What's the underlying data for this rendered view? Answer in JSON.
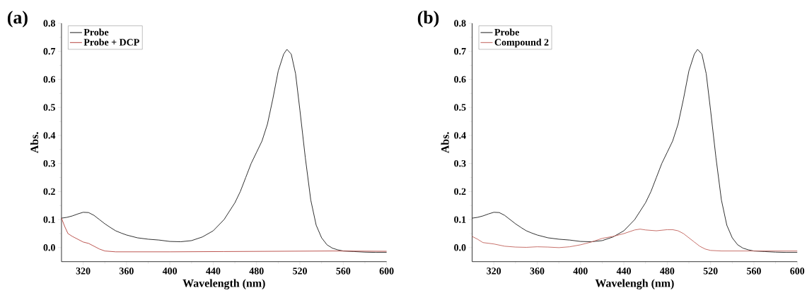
{
  "chart_data": [
    {
      "type": "line",
      "title": "(a)",
      "xlabel": "Wavelength (nm)",
      "ylabel": "Abs.",
      "xlim": [
        300,
        600
      ],
      "ylim": [
        -0.05,
        0.8
      ],
      "xticks": [
        320,
        360,
        400,
        440,
        480,
        520,
        560,
        600
      ],
      "yticks": [
        {
          "value": 0,
          "label": "0.0"
        },
        0.1,
        0.2,
        0.3,
        0.4,
        0.5,
        0.6,
        0.7,
        0.8
      ],
      "legend": "top left",
      "series": [
        {
          "name": "Probe",
          "color": "#1a1a1a",
          "x": [
            300,
            305,
            310,
            315,
            320,
            325,
            330,
            335,
            340,
            345,
            350,
            355,
            360,
            370,
            380,
            390,
            400,
            410,
            420,
            430,
            440,
            450,
            460,
            465,
            470,
            475,
            480,
            485,
            490,
            495,
            500,
            505,
            508,
            512,
            516,
            520,
            525,
            530,
            535,
            540,
            545,
            550,
            555,
            560,
            570,
            580,
            590,
            600
          ],
          "values": [
            0.105,
            0.108,
            0.113,
            0.12,
            0.126,
            0.125,
            0.115,
            0.1,
            0.085,
            0.072,
            0.06,
            0.052,
            0.045,
            0.035,
            0.03,
            0.027,
            0.022,
            0.021,
            0.025,
            0.038,
            0.06,
            0.1,
            0.16,
            0.2,
            0.25,
            0.3,
            0.34,
            0.38,
            0.44,
            0.53,
            0.63,
            0.69,
            0.707,
            0.69,
            0.62,
            0.49,
            0.32,
            0.17,
            0.08,
            0.035,
            0.01,
            -0.002,
            -0.008,
            -0.012,
            -0.014,
            -0.016,
            -0.017,
            -0.017
          ]
        },
        {
          "name": "Probe + DCP",
          "color": "#b5433d",
          "x": [
            300,
            303,
            306,
            310,
            315,
            320,
            325,
            330,
            335,
            340,
            350,
            400,
            450,
            550,
            600
          ],
          "values": [
            0.105,
            0.075,
            0.05,
            0.04,
            0.03,
            0.02,
            0.015,
            0.005,
            -0.005,
            -0.012,
            -0.015,
            -0.015,
            -0.014,
            -0.012,
            -0.013
          ]
        }
      ]
    },
    {
      "type": "line",
      "title": "(b)",
      "xlabel": "Wavelengh (nm)",
      "ylabel": "Abs.",
      "xlim": [
        300,
        600
      ],
      "ylim": [
        -0.05,
        0.8
      ],
      "xticks": [
        320,
        360,
        400,
        440,
        480,
        520,
        560,
        600
      ],
      "yticks": [
        {
          "value": 0,
          "label": "0.0"
        },
        0.1,
        0.2,
        0.3,
        0.4,
        0.5,
        0.6,
        0.7,
        0.8
      ],
      "legend": "top left",
      "series": [
        {
          "name": "Probe",
          "color": "#1a1a1a",
          "x": [
            300,
            305,
            310,
            315,
            320,
            325,
            330,
            335,
            340,
            345,
            350,
            355,
            360,
            370,
            380,
            390,
            400,
            410,
            420,
            430,
            440,
            450,
            460,
            465,
            470,
            475,
            480,
            485,
            490,
            495,
            500,
            505,
            508,
            512,
            516,
            520,
            525,
            530,
            535,
            540,
            545,
            550,
            555,
            560,
            570,
            580,
            590,
            600
          ],
          "values": [
            0.105,
            0.108,
            0.113,
            0.12,
            0.126,
            0.125,
            0.115,
            0.1,
            0.085,
            0.072,
            0.06,
            0.052,
            0.045,
            0.035,
            0.03,
            0.027,
            0.022,
            0.021,
            0.025,
            0.038,
            0.06,
            0.1,
            0.16,
            0.2,
            0.25,
            0.3,
            0.34,
            0.38,
            0.44,
            0.53,
            0.63,
            0.69,
            0.707,
            0.69,
            0.62,
            0.49,
            0.32,
            0.17,
            0.08,
            0.035,
            0.01,
            -0.002,
            -0.008,
            -0.012,
            -0.014,
            -0.016,
            -0.017,
            -0.017
          ]
        },
        {
          "name": "Compound 2",
          "color": "#c0605a",
          "x": [
            300,
            305,
            310,
            320,
            330,
            340,
            350,
            360,
            370,
            380,
            390,
            400,
            410,
            420,
            430,
            440,
            450,
            455,
            460,
            470,
            480,
            485,
            490,
            495,
            500,
            505,
            510,
            515,
            520,
            530,
            560,
            600
          ],
          "values": [
            0.04,
            0.03,
            0.018,
            0.013,
            0.005,
            0.002,
            0.001,
            0.003,
            0.002,
            0.0,
            0.003,
            0.01,
            0.02,
            0.033,
            0.04,
            0.05,
            0.063,
            0.066,
            0.063,
            0.06,
            0.064,
            0.064,
            0.06,
            0.05,
            0.035,
            0.02,
            0.005,
            -0.005,
            -0.01,
            -0.012,
            -0.012,
            -0.012
          ]
        }
      ]
    }
  ]
}
